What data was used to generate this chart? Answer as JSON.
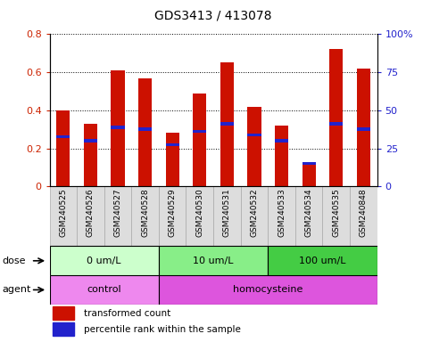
{
  "title": "GDS3413 / 413078",
  "samples": [
    "GSM240525",
    "GSM240526",
    "GSM240527",
    "GSM240528",
    "GSM240529",
    "GSM240530",
    "GSM240531",
    "GSM240532",
    "GSM240533",
    "GSM240534",
    "GSM240535",
    "GSM240848"
  ],
  "red_values": [
    0.4,
    0.33,
    0.61,
    0.57,
    0.28,
    0.49,
    0.65,
    0.42,
    0.32,
    0.13,
    0.72,
    0.62
  ],
  "blue_values": [
    0.26,
    0.24,
    0.31,
    0.3,
    0.22,
    0.29,
    0.33,
    0.27,
    0.24,
    0.12,
    0.33,
    0.3
  ],
  "red_color": "#cc1100",
  "blue_color": "#2222cc",
  "ylim": [
    0,
    0.8
  ],
  "ylim_right": [
    0,
    100
  ],
  "yticks_left": [
    0,
    0.2,
    0.4,
    0.6,
    0.8
  ],
  "yticks_right": [
    0,
    25,
    50,
    75,
    100
  ],
  "ytick_labels_left": [
    "0",
    "0.2",
    "0.4",
    "0.6",
    "0.8"
  ],
  "ytick_labels_right": [
    "0",
    "25",
    "50",
    "75",
    "100%"
  ],
  "dose_groups": [
    {
      "label": "0 um/L",
      "start": 0,
      "end": 4,
      "color": "#ccffcc"
    },
    {
      "label": "10 um/L",
      "start": 4,
      "end": 8,
      "color": "#88ee88"
    },
    {
      "label": "100 um/L",
      "start": 8,
      "end": 12,
      "color": "#44cc44"
    }
  ],
  "agent_groups": [
    {
      "label": "control",
      "start": 0,
      "end": 4,
      "color": "#ee88ee"
    },
    {
      "label": "homocysteine",
      "start": 4,
      "end": 12,
      "color": "#dd55dd"
    }
  ],
  "dose_label": "dose",
  "agent_label": "agent",
  "legend_red": "transformed count",
  "legend_blue": "percentile rank within the sample",
  "bar_width": 0.5,
  "bg_color": "#ffffff",
  "tick_label_color_left": "#cc2200",
  "tick_label_color_right": "#2222cc",
  "xtick_bg": "#dddddd"
}
